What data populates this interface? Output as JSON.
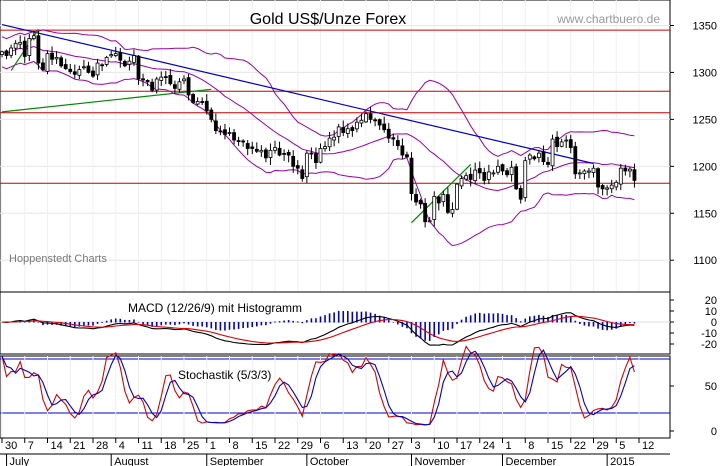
{
  "chart_data": {
    "type": "line",
    "title": "Gold US$/Unze Forex",
    "watermark": "www.chartbuero.de",
    "source_label": "Hoppenstedt Charts",
    "price_panel": {
      "ylim": [
        1080,
        1375
      ],
      "yticks": [
        1100,
        1150,
        1200,
        1250,
        1300,
        1350
      ],
      "horizontal_lines": [
        1345,
        1280,
        1257,
        1182
      ],
      "colors": {
        "candles": "#000000",
        "bollinger": "#9900aa",
        "resistance": "#cc0000",
        "downtrend": "#0000cc",
        "uptrend": "#008800"
      },
      "trendlines": [
        {
          "name": "down",
          "from": [
            "2014-06-30",
            1351
          ],
          "to": [
            "2014-12-29",
            1203
          ]
        },
        {
          "name": "up1",
          "from": [
            "2014-06-30",
            1258
          ],
          "to": [
            "2014-09-02",
            1282
          ]
        },
        {
          "name": "up2",
          "from": [
            "2014-07-02",
            1302
          ],
          "to": [
            "2014-07-10",
            1346
          ]
        },
        {
          "name": "up3",
          "from": [
            "2014-11-03",
            1140
          ],
          "to": [
            "2014-11-20",
            1202
          ]
        }
      ],
      "close": [
        1322,
        1318,
        1326,
        1331,
        1332,
        1317,
        1336,
        1339,
        1310,
        1303,
        1320,
        1314,
        1316,
        1307,
        1304,
        1301,
        1298,
        1303,
        1306,
        1300,
        1296,
        1310,
        1308,
        1316,
        1319,
        1320,
        1313,
        1307,
        1312,
        1318,
        1293,
        1292,
        1290,
        1281,
        1293,
        1295,
        1295,
        1288,
        1283,
        1290,
        1293,
        1276,
        1268,
        1269,
        1268,
        1259,
        1250,
        1238,
        1237,
        1234,
        1236,
        1228,
        1227,
        1226,
        1219,
        1219,
        1216,
        1217,
        1209,
        1217,
        1220,
        1212,
        1213,
        1212,
        1200,
        1198,
        1187,
        1214,
        1214,
        1204,
        1219,
        1221,
        1230,
        1231,
        1242,
        1236,
        1240,
        1238,
        1247,
        1249,
        1256,
        1250,
        1249,
        1244,
        1239,
        1230,
        1229,
        1222,
        1212,
        1210,
        1171,
        1162,
        1160,
        1141,
        1142,
        1168,
        1161,
        1170,
        1151,
        1154,
        1181,
        1187,
        1190,
        1186,
        1196,
        1193,
        1185,
        1194,
        1193,
        1200,
        1195,
        1191,
        1199,
        1176,
        1165,
        1206,
        1212,
        1208,
        1214,
        1205,
        1202,
        1229,
        1221,
        1226,
        1228,
        1220,
        1192,
        1193,
        1195,
        1195,
        1198,
        1178,
        1176,
        1177,
        1180,
        1183,
        1198,
        1195,
        1197,
        1185
      ]
    },
    "macd_panel": {
      "label": "MACD (12/26/9) mit Histogramm",
      "ylim": [
        -25,
        22
      ],
      "yticks": [
        20,
        10,
        0,
        -10,
        -20
      ]
    },
    "stoch_panel": {
      "label": "Stochastik (5/3/3)",
      "ylim": [
        -5,
        100
      ],
      "yticks": [
        50,
        0
      ],
      "bands": [
        80,
        20
      ]
    },
    "date_axis": {
      "start": "2014-06-30",
      "day_labels": [
        "30",
        "7",
        "14",
        "21",
        "28",
        "4",
        "11",
        "18",
        "25",
        "1",
        "8",
        "15",
        "22",
        "29",
        "6",
        "13",
        "20",
        "27",
        "3",
        "10",
        "17",
        "24",
        "1",
        "8",
        "15",
        "22",
        "29",
        "5",
        "12"
      ],
      "months": [
        {
          "label": "July",
          "date": "2014-07-01"
        },
        {
          "label": "August",
          "date": "2014-08-01"
        },
        {
          "label": "September",
          "date": "2014-09-01"
        },
        {
          "label": "October",
          "date": "2014-10-01"
        },
        {
          "label": "November",
          "date": "2014-11-01"
        },
        {
          "label": "December",
          "date": "2014-12-01"
        },
        {
          "label": "2015",
          "date": "2015-01-01"
        }
      ]
    }
  }
}
